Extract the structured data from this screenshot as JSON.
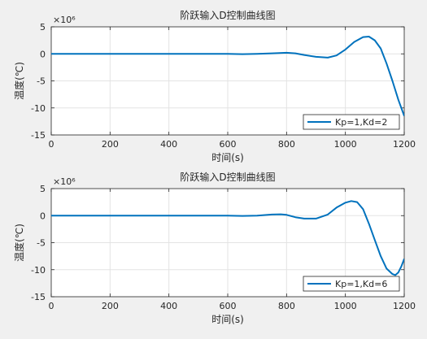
{
  "chart_data": [
    {
      "type": "line",
      "title": "阶跃输入D控制曲线图",
      "xlabel": "时间(s)",
      "ylabel": "温度(℃)",
      "exponent": "×10⁶",
      "xlim": [
        0,
        1200
      ],
      "ylim": [
        -15,
        5
      ],
      "x_ticks": [
        "0",
        "200",
        "400",
        "600",
        "800",
        "1000",
        "1200"
      ],
      "y_ticks": [
        "5",
        "0",
        "-5",
        "-10",
        "-15"
      ],
      "grid": true,
      "legend_position": "lower-right",
      "line_color": "#0072bd",
      "series": [
        {
          "name": "Kp=1,Kd=2",
          "x": [
            0,
            100,
            200,
            300,
            400,
            500,
            600,
            650,
            700,
            750,
            800,
            830,
            860,
            900,
            940,
            970,
            1000,
            1030,
            1060,
            1080,
            1100,
            1120,
            1140,
            1160,
            1180,
            1200
          ],
          "y": [
            0,
            0,
            0,
            0,
            0,
            0,
            0,
            -0.05,
            0,
            0.1,
            0.2,
            0.1,
            -0.2,
            -0.55,
            -0.7,
            -0.3,
            0.8,
            2.2,
            3.1,
            3.2,
            2.5,
            1.0,
            -1.8,
            -5.0,
            -8.5,
            -11.5
          ]
        }
      ]
    },
    {
      "type": "line",
      "title": "阶跃输入D控制曲线图",
      "xlabel": "时间(s)",
      "ylabel": "温度(℃)",
      "exponent": "×10⁶",
      "xlim": [
        0,
        1200
      ],
      "ylim": [
        -15,
        5
      ],
      "x_ticks": [
        "0",
        "200",
        "400",
        "600",
        "800",
        "1000",
        "1200"
      ],
      "y_ticks": [
        "5",
        "0",
        "-5",
        "-10",
        "-15"
      ],
      "grid": true,
      "legend_position": "lower-right",
      "line_color": "#0072bd",
      "series": [
        {
          "name": "Kp=1,Kd=6",
          "x": [
            0,
            100,
            200,
            300,
            400,
            500,
            600,
            650,
            700,
            750,
            780,
            800,
            830,
            860,
            900,
            940,
            970,
            1000,
            1020,
            1040,
            1060,
            1080,
            1100,
            1120,
            1140,
            1160,
            1170,
            1180,
            1190,
            1200
          ],
          "y": [
            0,
            0,
            0,
            0,
            0,
            0,
            0,
            -0.05,
            0,
            0.2,
            0.25,
            0.15,
            -0.3,
            -0.55,
            -0.55,
            0.2,
            1.5,
            2.4,
            2.7,
            2.5,
            1.2,
            -1.5,
            -4.5,
            -7.5,
            -9.8,
            -10.8,
            -11.0,
            -10.5,
            -9.4,
            -8.0
          ]
        }
      ]
    }
  ]
}
